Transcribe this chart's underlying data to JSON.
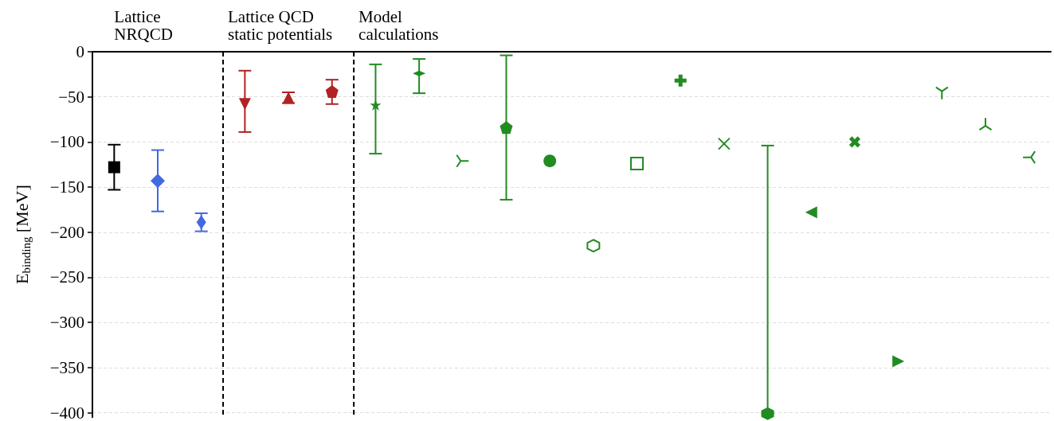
{
  "chart_data": {
    "type": "scatter",
    "ylabel": "E$_{binding}$ [MeV]",
    "annotations": [
      "Lattice\nNRQCD",
      "Lattice QCD\nstatic potentials",
      "Model\ncalculations"
    ],
    "categories": [
      null,
      null,
      null,
      null,
      null,
      null,
      null,
      null,
      null,
      null,
      null,
      null,
      null,
      null,
      null,
      null,
      null,
      null,
      null,
      null,
      null,
      null
    ],
    "ylim": [
      -405,
      0
    ],
    "yticks": [
      0,
      -50,
      -100,
      -150,
      -200,
      -250,
      -300,
      -350,
      -400
    ],
    "grid": "y",
    "tick_labels": "y",
    "series": [
      {
        "color": "#000000",
        "marker": "square",
        "values": [
          -128,
          null,
          null,
          null,
          null,
          null,
          null,
          null,
          null,
          null,
          null,
          null,
          null,
          null,
          null,
          null,
          null,
          null,
          null,
          null,
          null,
          null
        ],
        "errors": [
          [
            -153,
            -103
          ],
          null,
          null,
          null,
          null,
          null,
          null,
          null,
          null,
          null,
          null,
          null,
          null,
          null,
          null,
          null,
          null,
          null,
          null,
          null,
          null,
          null
        ]
      },
      {
        "color": "#4169e1",
        "marker": "diamond",
        "values": [
          null,
          -143,
          null,
          null,
          null,
          null,
          null,
          null,
          null,
          null,
          null,
          null,
          null,
          null,
          null,
          null,
          null,
          null,
          null,
          null,
          null,
          null
        ],
        "errors": [
          null,
          [
            -177,
            -109
          ],
          null,
          null,
          null,
          null,
          null,
          null,
          null,
          null,
          null,
          null,
          null,
          null,
          null,
          null,
          null,
          null,
          null,
          null,
          null,
          null
        ]
      },
      {
        "color": "#4169e1",
        "marker": "diamond",
        "values": [
          null,
          null,
          -189,
          null,
          null,
          null,
          null,
          null,
          null,
          null,
          null,
          null,
          null,
          null,
          null,
          null,
          null,
          null,
          null,
          null,
          null,
          null
        ],
        "errors": [
          null,
          null,
          [
            -199,
            -179
          ],
          null,
          null,
          null,
          null,
          null,
          null,
          null,
          null,
          null,
          null,
          null,
          null,
          null,
          null,
          null,
          null,
          null,
          null,
          null
        ]
      },
      {
        "color": "#b22222",
        "values": [
          null,
          null,
          null,
          -58,
          null,
          null,
          null,
          null,
          null,
          null,
          null,
          null,
          null,
          null,
          null,
          null,
          null,
          null,
          null,
          null,
          null,
          null
        ],
        "errors": [
          null,
          null,
          null,
          [
            -89,
            -21
          ],
          null,
          null,
          null,
          null,
          null,
          null,
          null,
          null,
          null,
          null,
          null,
          null,
          null,
          null,
          null,
          null,
          null,
          null
        ]
      },
      {
        "color": "#b22222",
        "marker": "triangle",
        "values": [
          null,
          null,
          null,
          null,
          -51,
          null,
          null,
          null,
          null,
          null,
          null,
          null,
          null,
          null,
          null,
          null,
          null,
          null,
          null,
          null,
          null,
          null
        ],
        "errors": [
          null,
          null,
          null,
          null,
          [
            -57,
            -45
          ],
          null,
          null,
          null,
          null,
          null,
          null,
          null,
          null,
          null,
          null,
          null,
          null,
          null,
          null,
          null,
          null,
          null
        ]
      },
      {
        "color": "#b22222",
        "values": [
          null,
          null,
          null,
          null,
          null,
          -44,
          null,
          null,
          null,
          null,
          null,
          null,
          null,
          null,
          null,
          null,
          null,
          null,
          null,
          null,
          null,
          null
        ],
        "errors": [
          null,
          null,
          null,
          null,
          null,
          [
            -58,
            -31
          ],
          null,
          null,
          null,
          null,
          null,
          null,
          null,
          null,
          null,
          null,
          null,
          null,
          null,
          null,
          null,
          null
        ]
      },
      {
        "color": "#228b22",
        "marker": "star",
        "values": [
          null,
          null,
          null,
          null,
          null,
          null,
          -59,
          null,
          null,
          null,
          null,
          null,
          null,
          null,
          null,
          null,
          null,
          null,
          null,
          null,
          null,
          null
        ],
        "errors": [
          null,
          null,
          null,
          null,
          null,
          null,
          [
            -113,
            -14
          ],
          null,
          null,
          null,
          null,
          null,
          null,
          null,
          null,
          null,
          null,
          null,
          null,
          null,
          null,
          null
        ]
      },
      {
        "color": "#228b22",
        "marker": "diamond",
        "values": [
          null,
          null,
          null,
          null,
          null,
          null,
          null,
          -24,
          null,
          null,
          null,
          null,
          null,
          null,
          null,
          null,
          null,
          null,
          null,
          null,
          null,
          null
        ],
        "errors": [
          null,
          null,
          null,
          null,
          null,
          null,
          null,
          [
            -46,
            -8
          ],
          null,
          null,
          null,
          null,
          null,
          null,
          null,
          null,
          null,
          null,
          null,
          null,
          null,
          null
        ]
      },
      {
        "color": "#228b22",
        "values": [
          null,
          null,
          null,
          null,
          null,
          null,
          null,
          null,
          -121,
          null,
          null,
          null,
          null,
          null,
          null,
          null,
          null,
          null,
          null,
          null,
          null,
          null
        ]
      },
      {
        "color": "#228b22",
        "values": [
          null,
          null,
          null,
          null,
          null,
          null,
          null,
          null,
          null,
          -84,
          null,
          null,
          null,
          null,
          null,
          null,
          null,
          null,
          null,
          null,
          null,
          null
        ],
        "errors": [
          null,
          null,
          null,
          null,
          null,
          null,
          null,
          null,
          null,
          [
            -164,
            -4
          ],
          null,
          null,
          null,
          null,
          null,
          null,
          null,
          null,
          null,
          null,
          null,
          null
        ]
      },
      {
        "color": "#228b22",
        "marker": "circle",
        "values": [
          null,
          null,
          null,
          null,
          null,
          null,
          null,
          null,
          null,
          null,
          -121,
          null,
          null,
          null,
          null,
          null,
          null,
          null,
          null,
          null,
          null,
          null
        ]
      },
      {
        "color": "#228b22",
        "values": [
          null,
          null,
          null,
          null,
          null,
          null,
          null,
          null,
          null,
          null,
          null,
          -215,
          null,
          null,
          null,
          null,
          null,
          null,
          null,
          null,
          null,
          null
        ]
      },
      {
        "color": "#228b22",
        "marker": "square",
        "values": [
          null,
          null,
          null,
          null,
          null,
          null,
          null,
          null,
          null,
          null,
          null,
          null,
          -124,
          null,
          null,
          null,
          null,
          null,
          null,
          null,
          null,
          null
        ]
      },
      {
        "color": "#228b22",
        "marker": "cross",
        "values": [
          null,
          null,
          null,
          null,
          null,
          null,
          null,
          null,
          null,
          null,
          null,
          null,
          null,
          -32,
          null,
          null,
          null,
          null,
          null,
          null,
          null,
          null
        ]
      },
      {
        "color": "#228b22",
        "values": [
          null,
          null,
          null,
          null,
          null,
          null,
          null,
          null,
          null,
          null,
          null,
          null,
          null,
          null,
          -102,
          null,
          null,
          null,
          null,
          null,
          null,
          null
        ]
      },
      {
        "color": "#228b22",
        "values": [
          null,
          null,
          null,
          null,
          null,
          null,
          null,
          null,
          null,
          null,
          null,
          null,
          null,
          null,
          null,
          -401,
          null,
          null,
          null,
          null,
          null,
          null
        ],
        "errors": [
          null,
          null,
          null,
          null,
          null,
          null,
          null,
          null,
          null,
          null,
          null,
          null,
          null,
          null,
          null,
          [
            -401,
            -104
          ],
          null,
          null,
          null,
          null,
          null,
          null
        ]
      },
      {
        "color": "#228b22",
        "values": [
          null,
          null,
          null,
          null,
          null,
          null,
          null,
          null,
          null,
          null,
          null,
          null,
          null,
          null,
          null,
          null,
          -178,
          null,
          null,
          null,
          null,
          null
        ]
      },
      {
        "color": "#228b22",
        "values": [
          null,
          null,
          null,
          null,
          null,
          null,
          null,
          null,
          null,
          null,
          null,
          null,
          null,
          null,
          null,
          null,
          null,
          -100,
          null,
          null,
          null,
          null
        ]
      },
      {
        "color": "#228b22",
        "values": [
          null,
          null,
          null,
          null,
          null,
          null,
          null,
          null,
          null,
          null,
          null,
          null,
          null,
          null,
          null,
          null,
          null,
          null,
          -343,
          null,
          null,
          null
        ]
      },
      {
        "color": "#228b22",
        "values": [
          null,
          null,
          null,
          null,
          null,
          null,
          null,
          null,
          null,
          null,
          null,
          null,
          null,
          null,
          null,
          null,
          null,
          null,
          null,
          -46,
          null,
          null
        ]
      },
      {
        "color": "#228b22",
        "values": [
          null,
          null,
          null,
          null,
          null,
          null,
          null,
          null,
          null,
          null,
          null,
          null,
          null,
          null,
          null,
          null,
          null,
          null,
          null,
          null,
          -80,
          null
        ]
      },
      {
        "color": "#228b22",
        "values": [
          null,
          null,
          null,
          null,
          null,
          null,
          null,
          null,
          null,
          null,
          null,
          null,
          null,
          null,
          null,
          null,
          null,
          null,
          null,
          null,
          null,
          -117
        ]
      }
    ]
  }
}
